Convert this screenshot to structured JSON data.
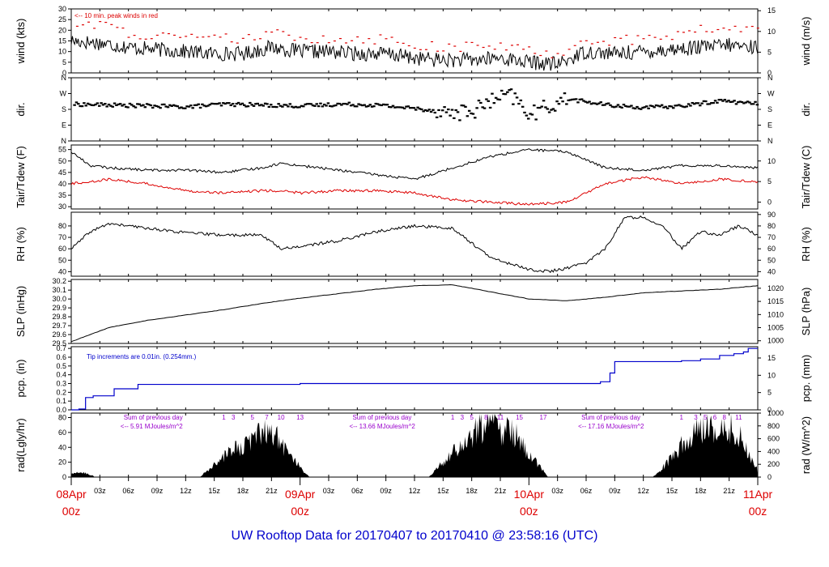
{
  "title": "UW Rooftop Data for 20170407  to  20170410 @ 23:58:16  (UTC)",
  "colors": {
    "title": "#0000cc",
    "date": "#dd0000",
    "temp": "#dd0000",
    "pcp": "#0000cc",
    "rad_text": "#9900cc",
    "ink": "#000000"
  },
  "x_axis": {
    "range_hours": [
      0,
      72
    ],
    "hour_ticks": [
      {
        "h": 3,
        "label": "03z"
      },
      {
        "h": 6,
        "label": "06z"
      },
      {
        "h": 9,
        "label": "09z"
      },
      {
        "h": 12,
        "label": "12z"
      },
      {
        "h": 15,
        "label": "15z"
      },
      {
        "h": 18,
        "label": "18z"
      },
      {
        "h": 21,
        "label": "21z"
      },
      {
        "h": 27,
        "label": "03z"
      },
      {
        "h": 30,
        "label": "06z"
      },
      {
        "h": 33,
        "label": "09z"
      },
      {
        "h": 36,
        "label": "12z"
      },
      {
        "h": 39,
        "label": "15z"
      },
      {
        "h": 42,
        "label": "18z"
      },
      {
        "h": 45,
        "label": "21z"
      },
      {
        "h": 51,
        "label": "03z"
      },
      {
        "h": 54,
        "label": "06z"
      },
      {
        "h": 57,
        "label": "09z"
      },
      {
        "h": 60,
        "label": "12z"
      },
      {
        "h": 63,
        "label": "15z"
      },
      {
        "h": 66,
        "label": "18z"
      },
      {
        "h": 69,
        "label": "21z"
      }
    ],
    "day_labels": [
      {
        "h": 0,
        "date": "08Apr",
        "time": "00z"
      },
      {
        "h": 24,
        "date": "09Apr",
        "time": "00z"
      },
      {
        "h": 48,
        "date": "10Apr",
        "time": "00z"
      },
      {
        "h": 72,
        "date": "11Apr",
        "time": "00z"
      }
    ]
  },
  "panels": [
    {
      "id": "wind",
      "ylabel": "wind (kts)",
      "rlabel": "wind (m/s)",
      "ylim": [
        0,
        30
      ],
      "left_ticks": [
        "0",
        "5",
        "10",
        "15",
        "20",
        "25",
        "30"
      ],
      "left_values": [
        0,
        5,
        10,
        15,
        20,
        25,
        30
      ],
      "right_ticks": [
        "0",
        "5",
        "10",
        "15"
      ],
      "right_values": [
        0,
        9.72,
        19.44,
        29.16
      ],
      "note": "<-- 10 min. peak winds in red"
    },
    {
      "id": "dir",
      "ylabel": "dir.",
      "rlabel": "dir.",
      "ylim": [
        0,
        360
      ],
      "left_ticks": [
        "N",
        "E",
        "S",
        "W",
        "N"
      ],
      "left_values": [
        0,
        90,
        180,
        270,
        360
      ],
      "right_ticks": [
        "N",
        "E",
        "S",
        "W",
        "N"
      ],
      "right_values": [
        0,
        90,
        180,
        270,
        360
      ]
    },
    {
      "id": "temp",
      "ylabel": "Tair/Tdew (F)",
      "rlabel": "Tair/Tdew (C)",
      "ylim": [
        29,
        57
      ],
      "left_ticks": [
        "30",
        "35",
        "40",
        "45",
        "50",
        "55"
      ],
      "left_values": [
        30,
        35,
        40,
        45,
        50,
        55
      ],
      "right_ticks": [
        "0",
        "5",
        "10"
      ],
      "right_values": [
        32,
        41,
        50
      ]
    },
    {
      "id": "rh",
      "ylabel": "RH (%)",
      "rlabel": "RH (%)",
      "ylim": [
        36,
        92
      ],
      "left_ticks": [
        "40",
        "50",
        "60",
        "70",
        "80"
      ],
      "left_values": [
        40,
        50,
        60,
        70,
        80
      ],
      "right_ticks": [
        "40",
        "50",
        "60",
        "70",
        "80",
        "90"
      ],
      "right_values": [
        40,
        50,
        60,
        70,
        80,
        90
      ]
    },
    {
      "id": "slp",
      "ylabel": "SLP (inHg)",
      "rlabel": "SLP (hPa)",
      "ylim": [
        29.5,
        30.22
      ],
      "left_ticks": [
        "29.5",
        "29.6",
        "29.7",
        "29.8",
        "29.9",
        "30.0",
        "30.1",
        "30.2"
      ],
      "left_values": [
        29.5,
        29.6,
        29.7,
        29.8,
        29.9,
        30.0,
        30.1,
        30.2
      ],
      "right_ticks": [
        "1000",
        "1005",
        "1010",
        "1015",
        "1020"
      ],
      "right_values": [
        29.53,
        29.678,
        29.825,
        29.973,
        30.121
      ]
    },
    {
      "id": "pcp",
      "ylabel": "pcp. (in)",
      "rlabel": "pcp. (mm)",
      "ylim": [
        0,
        0.72
      ],
      "left_ticks": [
        "0.0",
        "0.1",
        "0.2",
        "0.3",
        "0.4",
        "0.5",
        "0.6",
        "0.7"
      ],
      "left_values": [
        0,
        0.1,
        0.2,
        0.3,
        0.4,
        0.5,
        0.6,
        0.7
      ],
      "right_ticks": [
        "0",
        "5",
        "10",
        "15"
      ],
      "right_values": [
        0,
        0.197,
        0.394,
        0.591
      ],
      "note": "Tip increments are 0.01in. (0.254mm.)"
    },
    {
      "id": "rad",
      "ylabel": "rad(Lgly/hr)",
      "rlabel": "rad (W/m^2)",
      "ylim": [
        0,
        86
      ],
      "left_ticks": [
        "0",
        "20",
        "40",
        "60",
        "80"
      ],
      "left_values": [
        0,
        20,
        40,
        60,
        80
      ],
      "right_ticks": [
        "0",
        "200",
        "400",
        "600",
        "800",
        "1000"
      ],
      "right_values": [
        0,
        17.2,
        34.4,
        51.6,
        68.8,
        86
      ]
    }
  ],
  "radiation_notes": [
    {
      "h": 5.5,
      "line1": "Sum of previous day",
      "line2": "<-- 5.91 MJoules/m^2"
    },
    {
      "h": 29.5,
      "line1": "Sum of previous day",
      "line2": "<-- 13.66 MJoules/m^2"
    },
    {
      "h": 53.5,
      "line1": "Sum of previous day",
      "line2": "<-- 17.16 MJoules/m^2"
    }
  ],
  "hour_marks": [
    {
      "h": 16,
      "label": "1"
    },
    {
      "h": 17,
      "label": "3"
    },
    {
      "h": 19,
      "label": "5"
    },
    {
      "h": 20.5,
      "label": "7"
    },
    {
      "h": 22,
      "label": "10"
    },
    {
      "h": 24,
      "label": "13"
    },
    {
      "h": 40,
      "label": "1"
    },
    {
      "h": 41,
      "label": "3"
    },
    {
      "h": 42,
      "label": "5"
    },
    {
      "h": 43.5,
      "label": "8"
    },
    {
      "h": 45,
      "label": "11"
    },
    {
      "h": 47,
      "label": "15"
    },
    {
      "h": 49.5,
      "label": "17"
    },
    {
      "h": 64,
      "label": "1"
    },
    {
      "h": 65.5,
      "label": "3"
    },
    {
      "h": 66.5,
      "label": "5"
    },
    {
      "h": 67.5,
      "label": "6"
    },
    {
      "h": 68.5,
      "label": "8"
    },
    {
      "h": 70,
      "label": "11"
    }
  ],
  "chart_data": [
    {
      "type": "line",
      "name": "wind",
      "ylabel": "wind (kts)",
      "ylim": [
        0,
        30
      ],
      "x_unit": "hours since 08Apr 00z",
      "series": [
        {
          "name": "wind speed",
          "x": [
            0,
            3,
            6,
            9,
            12,
            15,
            18,
            21,
            24,
            27,
            30,
            33,
            36,
            39,
            42,
            45,
            48,
            51,
            54,
            57,
            60,
            63,
            66,
            69,
            72
          ],
          "values": [
            15,
            14,
            12,
            11,
            10,
            9,
            9,
            12,
            10,
            10,
            9,
            9,
            7,
            6,
            6,
            7,
            5,
            4,
            10,
            9,
            10,
            11,
            12,
            13,
            12
          ]
        },
        {
          "name": "10 min. peak winds",
          "x": [
            0,
            3,
            6,
            9,
            12,
            15,
            18,
            21,
            24,
            27,
            30,
            33,
            36,
            39,
            42,
            45,
            48,
            51,
            54,
            57,
            60,
            63,
            66,
            69,
            72
          ],
          "values": [
            24,
            22,
            19,
            17,
            16,
            16,
            16,
            18,
            17,
            16,
            16,
            16,
            13,
            12,
            12,
            13,
            10,
            9,
            16,
            15,
            16,
            18,
            20,
            21,
            20
          ]
        }
      ]
    },
    {
      "type": "scatter",
      "name": "dir",
      "ylabel": "dir.",
      "ylim": [
        0,
        360
      ],
      "x_unit": "hours since 08Apr 00z",
      "series": [
        {
          "name": "wind direction",
          "x": [
            0,
            4,
            8,
            12,
            16,
            20,
            24,
            28,
            32,
            36,
            40,
            42,
            44,
            46,
            48,
            50,
            52,
            56,
            60,
            64,
            68,
            72
          ],
          "values": [
            210,
            205,
            200,
            195,
            210,
            205,
            200,
            210,
            205,
            185,
            160,
            170,
            230,
            260,
            150,
            200,
            240,
            205,
            190,
            200,
            230,
            210
          ]
        }
      ]
    },
    {
      "type": "line",
      "name": "temp",
      "ylabel": "Tair/Tdew (F)",
      "ylim": [
        29,
        57
      ],
      "x_unit": "hours since 08Apr 00z",
      "series": [
        {
          "name": "Tair",
          "x": [
            0,
            2,
            4,
            8,
            12,
            16,
            20,
            22,
            24,
            28,
            32,
            36,
            40,
            44,
            48,
            52,
            56,
            60,
            64,
            68,
            72
          ],
          "values": [
            54,
            48,
            47,
            46,
            46,
            45,
            47,
            49,
            48,
            46,
            44,
            42,
            47,
            52,
            55,
            54,
            47,
            46,
            48,
            48,
            47
          ]
        },
        {
          "name": "Tdew",
          "x": [
            0,
            2,
            4,
            8,
            12,
            16,
            20,
            22,
            24,
            28,
            32,
            36,
            40,
            44,
            48,
            52,
            56,
            60,
            64,
            68,
            72
          ],
          "values": [
            40,
            41,
            42,
            40,
            37,
            36,
            37,
            37,
            36,
            37,
            37,
            36,
            33,
            32,
            31,
            32,
            40,
            43,
            40,
            42,
            41
          ]
        }
      ]
    },
    {
      "type": "line",
      "name": "rh",
      "ylabel": "RH (%)",
      "ylim": [
        36,
        92
      ],
      "x_unit": "hours since 08Apr 00z",
      "series": [
        {
          "name": "RH",
          "x": [
            0,
            2,
            4,
            8,
            12,
            16,
            20,
            22,
            24,
            28,
            32,
            36,
            40,
            44,
            48,
            50,
            52,
            54,
            56,
            58,
            60,
            62,
            64,
            66,
            68,
            70,
            72
          ],
          "values": [
            60,
            75,
            82,
            78,
            74,
            72,
            72,
            60,
            62,
            67,
            75,
            80,
            78,
            52,
            42,
            40,
            43,
            48,
            60,
            87,
            88,
            80,
            60,
            75,
            72,
            80,
            72
          ]
        }
      ]
    },
    {
      "type": "line",
      "name": "slp",
      "ylabel": "SLP (inHg)",
      "ylim": [
        29.5,
        30.22
      ],
      "x_unit": "hours since 08Apr 00z",
      "series": [
        {
          "name": "SLP",
          "x": [
            0,
            4,
            8,
            12,
            16,
            20,
            24,
            28,
            32,
            36,
            40,
            44,
            48,
            52,
            56,
            60,
            64,
            68,
            72
          ],
          "values": [
            29.52,
            29.68,
            29.76,
            29.82,
            29.88,
            29.95,
            30.01,
            30.06,
            30.11,
            30.15,
            30.16,
            30.08,
            30.0,
            29.98,
            30.02,
            30.07,
            30.09,
            30.11,
            30.15
          ]
        }
      ]
    },
    {
      "type": "area",
      "name": "pcp",
      "ylabel": "pcp. (in)",
      "ylim": [
        0,
        0.72
      ],
      "x_unit": "hours since 08Apr 00z",
      "series": [
        {
          "name": "accumulated precipitation",
          "x": [
            0,
            0.8,
            1.5,
            2.3,
            4.5,
            7,
            12,
            24,
            36,
            48,
            54,
            55.5,
            56.5,
            57,
            62,
            64,
            66,
            68,
            69.5,
            70.5,
            71,
            72
          ],
          "values": [
            0,
            0.01,
            0.14,
            0.16,
            0.24,
            0.29,
            0.29,
            0.3,
            0.3,
            0.3,
            0.3,
            0.32,
            0.42,
            0.55,
            0.55,
            0.56,
            0.58,
            0.62,
            0.64,
            0.66,
            0.7,
            0.7
          ]
        }
      ]
    },
    {
      "type": "area",
      "name": "rad",
      "ylabel": "rad(Lgly/hr)",
      "ylim": [
        0,
        86
      ],
      "x_unit": "hours since 08Apr 00z",
      "series": [
        {
          "name": "solar radiation",
          "x": [
            0,
            1,
            2,
            2.5,
            13.5,
            15,
            17,
            18,
            19,
            20,
            21,
            22,
            23,
            24,
            25,
            37.5,
            39,
            41,
            43,
            44,
            45,
            46,
            47,
            48,
            49,
            50,
            61,
            63,
            64,
            65,
            66,
            67,
            68,
            69,
            70,
            71,
            72
          ],
          "values": [
            5,
            8,
            4,
            0,
            0,
            20,
            45,
            52,
            60,
            70,
            80,
            55,
            40,
            15,
            0,
            0,
            25,
            55,
            80,
            90,
            70,
            80,
            60,
            40,
            20,
            0,
            0,
            30,
            55,
            70,
            80,
            85,
            75,
            80,
            70,
            40,
            10
          ]
        }
      ]
    }
  ]
}
